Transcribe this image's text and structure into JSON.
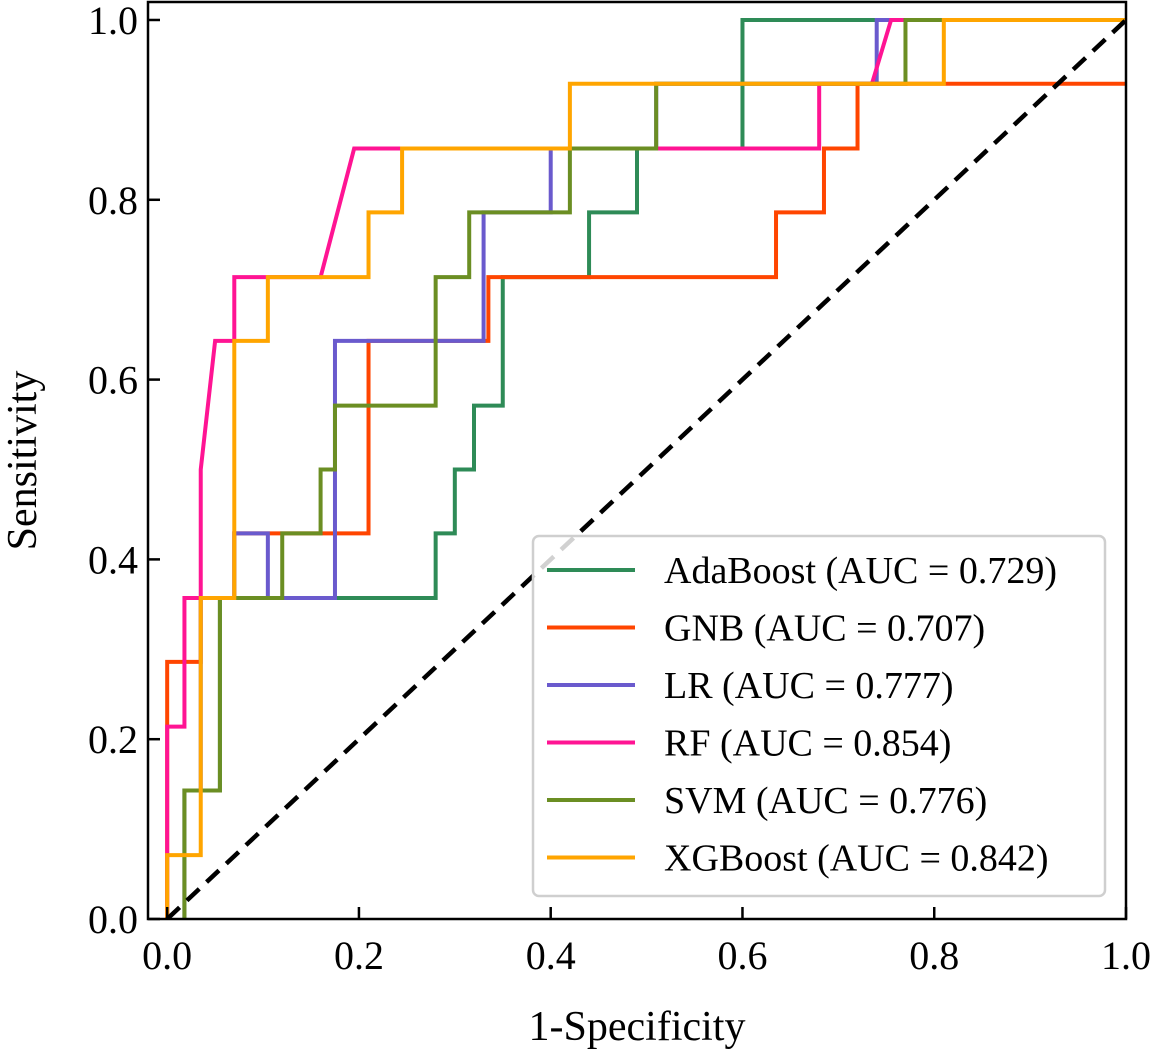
{
  "chart_data": {
    "type": "line",
    "title": "",
    "xlabel": "1-Specificity",
    "ylabel": "Sensitivity",
    "xlim": [
      -0.02,
      1.0
    ],
    "ylim": [
      0.0,
      1.02
    ],
    "xticks": [
      0.0,
      0.2,
      0.4,
      0.6,
      0.8,
      1.0
    ],
    "xtick_labels": [
      "0.0",
      "0.2",
      "0.4",
      "0.6",
      "0.8",
      "1.0"
    ],
    "yticks": [
      0.0,
      0.2,
      0.4,
      0.6,
      0.8,
      1.0
    ],
    "ytick_labels": [
      "0.0",
      "0.2",
      "0.4",
      "0.6",
      "0.8",
      "1.0"
    ],
    "grid": false,
    "legend_position": "lower-right",
    "reference_line": {
      "name": "chance",
      "style": "dashed",
      "color": "#000000",
      "x": [
        0.0,
        1.0
      ],
      "y": [
        0.0,
        1.0
      ]
    },
    "series": [
      {
        "name": "AdaBoost",
        "legend_label": "AdaBoost (AUC = 0.729)",
        "auc": 0.729,
        "color": "#2e8b57",
        "x": [
          0.018,
          0.018,
          0.055,
          0.055,
          0.07,
          0.07,
          0.1,
          0.1,
          0.12,
          0.12,
          0.28,
          0.28,
          0.3,
          0.3,
          0.32,
          0.32,
          0.35,
          0.35,
          0.44,
          0.44,
          0.49,
          0.49,
          0.6,
          0.6,
          0.77,
          0.77,
          0.81,
          0.81,
          1.0,
          1.0
        ],
        "y": [
          0.0,
          0.143,
          0.143,
          0.357,
          0.357,
          0.357,
          0.357,
          0.357,
          0.357,
          0.357,
          0.357,
          0.429,
          0.429,
          0.5,
          0.5,
          0.571,
          0.571,
          0.714,
          0.714,
          0.786,
          0.786,
          0.857,
          0.857,
          1.0,
          1.0,
          1.0,
          1.0,
          1.0,
          1.0,
          1.0
        ]
      },
      {
        "name": "GNB",
        "legend_label": "GNB (AUC = 0.707)",
        "auc": 0.707,
        "color": "#ff4500",
        "x": [
          0.0,
          0.0,
          0.0,
          0.035,
          0.035,
          0.07,
          0.07,
          0.21,
          0.21,
          0.28,
          0.28,
          0.335,
          0.335,
          0.635,
          0.635,
          0.685,
          0.685,
          0.72,
          0.72,
          0.86,
          0.86,
          1.0
        ],
        "y": [
          0.0,
          0.214,
          0.286,
          0.286,
          0.357,
          0.357,
          0.429,
          0.429,
          0.643,
          0.643,
          0.643,
          0.643,
          0.714,
          0.714,
          0.786,
          0.786,
          0.857,
          0.857,
          0.929,
          0.929,
          0.929,
          0.929
        ]
      },
      {
        "name": "LR",
        "legend_label": "LR (AUC = 0.777)",
        "auc": 0.777,
        "color": "#6a5acd",
        "x": [
          0.018,
          0.018,
          0.035,
          0.035,
          0.07,
          0.07,
          0.105,
          0.105,
          0.175,
          0.175,
          0.28,
          0.28,
          0.33,
          0.33,
          0.4,
          0.4,
          0.51,
          0.51,
          0.68,
          0.68,
          0.74,
          0.74,
          0.77,
          0.77,
          1.0,
          1.0
        ],
        "y": [
          0.0,
          0.143,
          0.143,
          0.357,
          0.357,
          0.429,
          0.429,
          0.357,
          0.357,
          0.643,
          0.643,
          0.643,
          0.643,
          0.786,
          0.786,
          0.857,
          0.857,
          0.929,
          0.929,
          0.929,
          0.929,
          1.0,
          1.0,
          1.0,
          1.0,
          1.0
        ]
      },
      {
        "name": "RF",
        "legend_label": "RF (AUC = 0.854)",
        "auc": 0.854,
        "color": "#ff1493",
        "x": [
          0.0,
          0.0,
          0.018,
          0.018,
          0.035,
          0.035,
          0.05,
          0.07,
          0.07,
          0.105,
          0.16,
          0.195,
          0.42,
          0.42,
          0.68,
          0.68,
          0.735,
          0.755,
          0.77,
          1.0
        ],
        "y": [
          0.0,
          0.214,
          0.214,
          0.357,
          0.357,
          0.5,
          0.643,
          0.643,
          0.714,
          0.714,
          0.714,
          0.857,
          0.857,
          0.857,
          0.857,
          0.929,
          0.929,
          1.0,
          1.0,
          1.0
        ]
      },
      {
        "name": "SVM",
        "legend_label": "SVM (AUC = 0.776)",
        "auc": 0.776,
        "color": "#6b8e23",
        "x": [
          0.018,
          0.018,
          0.055,
          0.055,
          0.07,
          0.12,
          0.12,
          0.16,
          0.16,
          0.175,
          0.175,
          0.28,
          0.28,
          0.315,
          0.315,
          0.42,
          0.42,
          0.51,
          0.51,
          0.77,
          0.77,
          1.0
        ],
        "y": [
          0.0,
          0.143,
          0.143,
          0.357,
          0.357,
          0.357,
          0.429,
          0.429,
          0.5,
          0.5,
          0.571,
          0.571,
          0.714,
          0.714,
          0.786,
          0.786,
          0.857,
          0.857,
          0.929,
          0.929,
          1.0,
          1.0
        ]
      },
      {
        "name": "XGBoost",
        "legend_label": "XGBoost (AUC = 0.842)",
        "auc": 0.842,
        "color": "#ffa500",
        "x": [
          0.0,
          0.0,
          0.035,
          0.035,
          0.07,
          0.07,
          0.105,
          0.105,
          0.21,
          0.21,
          0.245,
          0.245,
          0.42,
          0.42,
          0.81,
          0.81,
          1.0,
          1.0
        ],
        "y": [
          0.0,
          0.071,
          0.071,
          0.357,
          0.357,
          0.643,
          0.643,
          0.714,
          0.714,
          0.786,
          0.786,
          0.857,
          0.857,
          0.929,
          0.929,
          1.0,
          1.0,
          1.0
        ]
      }
    ]
  }
}
